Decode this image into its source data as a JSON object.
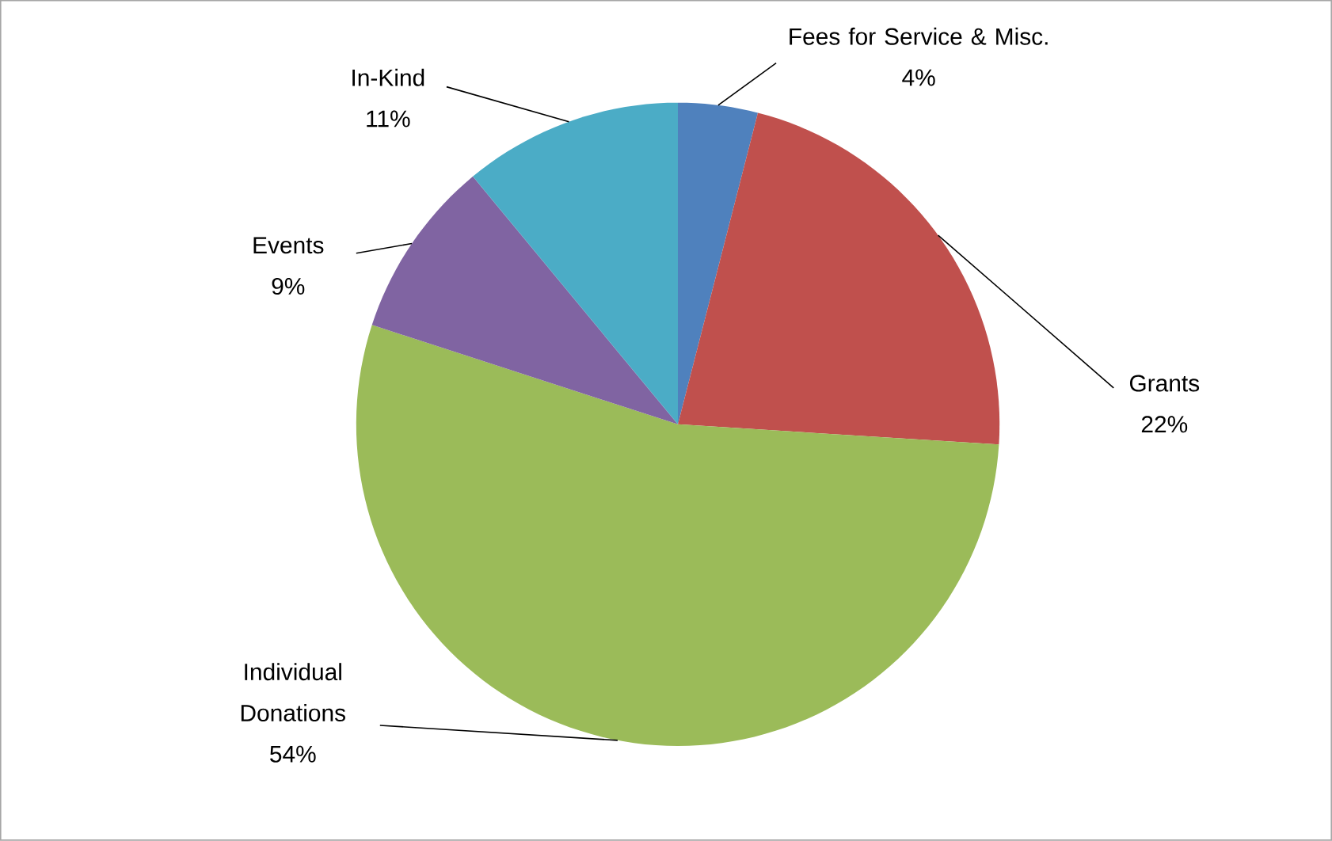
{
  "chart_data": {
    "type": "pie",
    "categories": [
      "Fees for Service & Misc.",
      "Grants",
      "Individual Donations",
      "Events",
      "In-Kind"
    ],
    "values": [
      4,
      22,
      54,
      9,
      11
    ],
    "value_labels": [
      "4%",
      "22%",
      "54%",
      "9%",
      "11%"
    ],
    "colors": [
      "#4f81bd",
      "#c0504d",
      "#9bbb59",
      "#8064a2",
      "#4bacc6"
    ]
  }
}
